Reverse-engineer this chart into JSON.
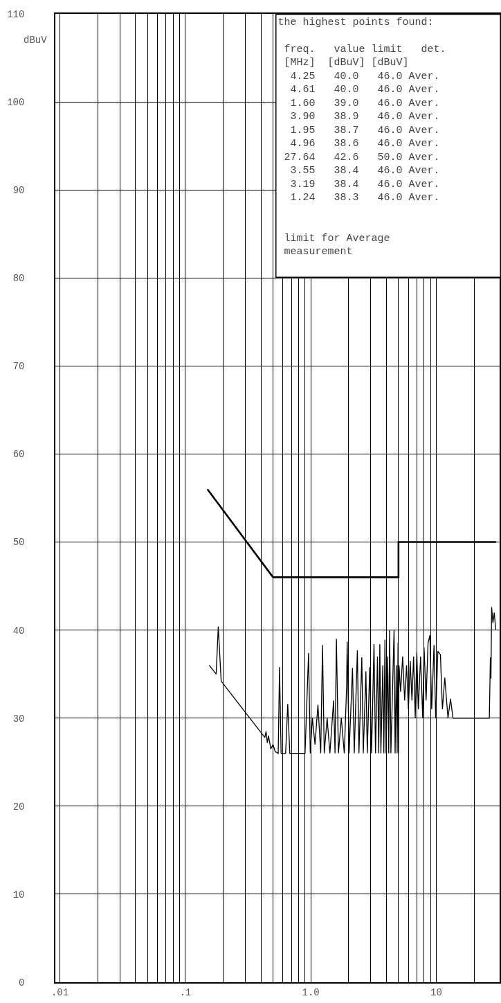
{
  "chart_data": {
    "type": "line",
    "ylabel": "dBuV",
    "x": [
      0.155,
      0.176,
      0.183,
      0.193,
      0.43,
      0.44,
      0.45,
      0.46,
      0.48,
      0.5,
      0.52,
      0.55,
      0.563,
      0.58,
      0.63,
      0.655,
      0.68,
      0.9,
      0.96,
      0.99,
      1.03,
      1.08,
      1.14,
      1.2,
      1.24,
      1.28,
      1.35,
      1.42,
      1.52,
      1.56,
      1.6,
      1.66,
      1.75,
      1.85,
      1.93,
      1.95,
      2.02,
      2.15,
      2.22,
      2.35,
      2.42,
      2.55,
      2.62,
      2.75,
      2.82,
      2.95,
      3.05,
      3.19,
      3.28,
      3.4,
      3.48,
      3.55,
      3.62,
      3.75,
      3.82,
      3.9,
      3.98,
      4.1,
      4.18,
      4.25,
      4.35,
      4.61,
      4.7,
      4.8,
      4.88,
      4.96,
      5.0,
      5.05,
      5.2,
      5.4,
      5.6,
      5.8,
      6.0,
      6.2,
      6.4,
      6.6,
      6.8,
      7.0,
      7.2,
      7.5,
      7.8,
      8.0,
      8.3,
      8.6,
      8.9,
      9.2,
      9.6,
      9.9,
      10.3,
      10.8,
      11.2,
      11.7,
      12.4,
      13.0,
      13.6,
      26.5,
      27.0,
      27.3,
      27.64,
      28.3,
      29.0,
      29.8
    ],
    "series": [
      {
        "color": "#000000",
        "values": [
          36.0,
          35.0,
          40.4,
          34.2,
          27.8,
          28.5,
          27.2,
          28.0,
          26.5,
          27.0,
          26.2,
          26.0,
          35.8,
          26.0,
          26.0,
          31.6,
          26.0,
          26.0,
          37.4,
          26.0,
          30.0,
          27.0,
          31.5,
          26.0,
          38.3,
          26.0,
          30.0,
          26.0,
          32.0,
          26.0,
          39.0,
          26.0,
          30.0,
          26.0,
          33.6,
          38.7,
          26.0,
          35.7,
          26.0,
          37.7,
          26.0,
          36.9,
          26.0,
          35.3,
          26.0,
          35.8,
          26.0,
          38.4,
          26.0,
          37.0,
          26.0,
          38.4,
          26.0,
          36.0,
          26.0,
          38.9,
          26.0,
          37.0,
          26.0,
          40.0,
          26.0,
          40.0,
          26.0,
          36.0,
          26.0,
          38.6,
          26.0,
          36.0,
          33.0,
          37.0,
          32.0,
          36.0,
          31.0,
          36.5,
          32.0,
          37.0,
          30.0,
          37.5,
          31.0,
          37.0,
          30.0,
          38.0,
          32.0,
          38.5,
          39.4,
          31.0,
          38.3,
          30.0,
          37.6,
          37.2,
          31.0,
          34.6,
          30.0,
          32.2,
          30.0,
          30.0,
          36.9,
          34.5,
          42.6,
          40.8,
          42.0,
          40.0
        ]
      },
      {
        "color": "#000000",
        "x": [
          0.15,
          0.5,
          5,
          5,
          30
        ],
        "values": [
          56,
          46,
          46,
          50,
          50
        ]
      }
    ],
    "log": "x",
    "xlim": [
      0.0092,
      32
    ],
    "xticks": [
      {
        "value": 0.01,
        "label": ".01"
      },
      {
        "value": 0.02,
        "label": null
      },
      {
        "value": 0.03,
        "label": null
      },
      {
        "value": 0.04,
        "label": null
      },
      {
        "value": 0.05,
        "label": null
      },
      {
        "value": 0.06,
        "label": null
      },
      {
        "value": 0.07,
        "label": null
      },
      {
        "value": 0.08,
        "label": null
      },
      {
        "value": 0.09,
        "label": null
      },
      {
        "value": 0.1,
        "label": ".1"
      },
      {
        "value": 0.2,
        "label": null
      },
      {
        "value": 0.3,
        "label": null
      },
      {
        "value": 0.4,
        "label": null
      },
      {
        "value": 0.5,
        "label": null
      },
      {
        "value": 0.6,
        "label": null
      },
      {
        "value": 0.7,
        "label": null
      },
      {
        "value": 0.8,
        "label": null
      },
      {
        "value": 0.9,
        "label": null
      },
      {
        "value": 1,
        "label": "1.0"
      },
      {
        "value": 2,
        "label": null
      },
      {
        "value": 3,
        "label": null
      },
      {
        "value": 4,
        "label": null
      },
      {
        "value": 5,
        "label": null
      },
      {
        "value": 6,
        "label": null
      },
      {
        "value": 7,
        "label": null
      },
      {
        "value": 8,
        "label": null
      },
      {
        "value": 9,
        "label": null
      },
      {
        "value": 10,
        "label": "10"
      },
      {
        "value": 20,
        "label": null
      }
    ],
    "ylim": [
      0,
      110
    ],
    "yticks": [
      0,
      10,
      20,
      30,
      40,
      50,
      60,
      70,
      80,
      90,
      100,
      110
    ],
    "grid": true,
    "marker": "none",
    "line_style": "solid",
    "annotations": [
      "the highest points found:",
      " freq.   value limit   det.",
      " [MHz]  [dBuV] [dBuV]",
      "  4.25   40.0   46.0 Aver.",
      "  4.61   40.0   46.0 Aver.",
      "  1.60   39.0   46.0 Aver.",
      "  3.90   38.9   46.0 Aver.",
      "  1.95   38.7   46.0 Aver.",
      "  4.96   38.6   46.0 Aver.",
      " 27.64   42.6   50.0 Aver.",
      "  3.55   38.4   46.0 Aver.",
      "  3.19   38.4   46.0 Aver.",
      "  1.24   38.3   46.0 Aver.",
      " limit for Average",
      " measurement"
    ]
  }
}
